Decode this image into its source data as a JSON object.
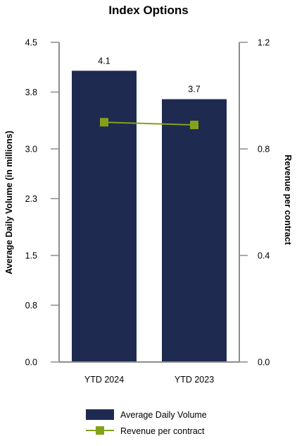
{
  "chart_data": {
    "type": "bar",
    "title": "Index Options",
    "categories": [
      "YTD 2024",
      "YTD 2023"
    ],
    "series": [
      {
        "name": "Average Daily Volume",
        "type": "bar",
        "axis": "left",
        "color": "#1f2a50",
        "values": [
          4.1,
          3.7
        ],
        "labels": [
          "4.1",
          "3.7"
        ]
      },
      {
        "name": "Revenue per contract",
        "type": "line",
        "axis": "right",
        "color": "#84a11b",
        "values": [
          0.9,
          0.89
        ]
      }
    ],
    "ylabel": "Average Daily Volume (in millions)",
    "y2label": "Revenue per contract",
    "ylim": [
      0,
      4.5
    ],
    "y2lim": [
      0,
      1.2
    ],
    "yticks": [
      "0.0",
      "0.8",
      "1.5",
      "2.3",
      "3.0",
      "3.8",
      "4.5"
    ],
    "y2ticks": [
      "0.0",
      "0.4",
      "0.8",
      "1.2"
    ],
    "grid": false,
    "legend": "bottom"
  }
}
